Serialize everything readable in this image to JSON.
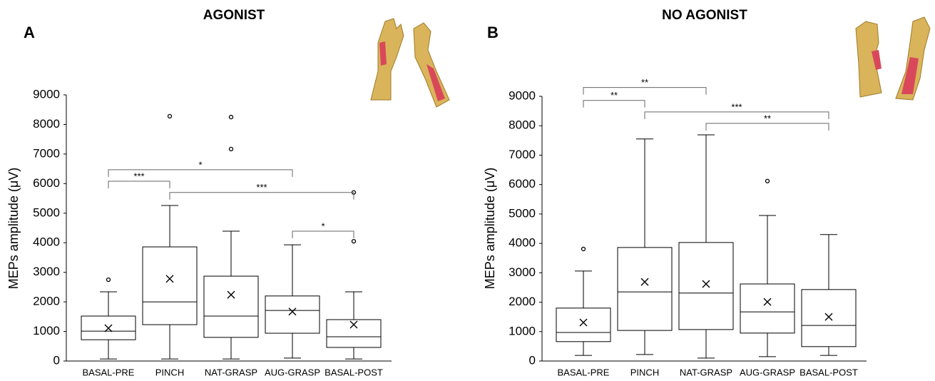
{
  "chart_data": [
    {
      "type": "box",
      "panel": "A",
      "title": "AGONIST",
      "ylabel": "MEPs amplitude (μV)",
      "ylim": [
        0,
        9000
      ],
      "yticks": [
        0,
        1000,
        2000,
        3000,
        4000,
        5000,
        6000,
        7000,
        8000,
        9000
      ],
      "color": "#000000",
      "categories": [
        "BASAL-PRE",
        "PINCH",
        "NAT-GRASP",
        "AUG-GRASP",
        "BASAL-POST"
      ],
      "boxes": [
        {
          "min": 70,
          "q1": 720,
          "median": 1010,
          "q3": 1520,
          "max": 2340,
          "mean": 1110,
          "outliers": [
            2750
          ]
        },
        {
          "min": 70,
          "q1": 1230,
          "median": 2000,
          "q3": 3860,
          "max": 5260,
          "mean": 2780,
          "outliers": [
            8280
          ]
        },
        {
          "min": 70,
          "q1": 800,
          "median": 1520,
          "q3": 2870,
          "max": 4390,
          "mean": 2240,
          "outliers": [
            8250,
            7170
          ]
        },
        {
          "min": 100,
          "q1": 940,
          "median": 1710,
          "q3": 2200,
          "max": 3930,
          "mean": 1670,
          "outliers": []
        },
        {
          "min": 70,
          "q1": 460,
          "median": 820,
          "q3": 1400,
          "max": 2340,
          "mean": 1230,
          "outliers": [
            5700,
            4050
          ]
        }
      ],
      "brackets": [
        {
          "from": "BASAL-PRE",
          "to": "PINCH",
          "y": 6080,
          "label": "***"
        },
        {
          "from": "BASAL-PRE",
          "to": "AUG-GRASP",
          "y": 6470,
          "label": "*"
        },
        {
          "from": "PINCH",
          "to": "BASAL-POST",
          "y": 5700,
          "label": "***"
        },
        {
          "from": "AUG-GRASP",
          "to": "BASAL-POST",
          "y": 4390,
          "label": "*"
        }
      ]
    },
    {
      "type": "box",
      "panel": "B",
      "title": "NO AGONIST",
      "ylabel": "MEPs amplitude (μV)",
      "ylim": [
        0,
        9000
      ],
      "yticks": [
        0,
        1000,
        2000,
        3000,
        4000,
        5000,
        6000,
        7000,
        8000,
        9000
      ],
      "color": "#000000",
      "categories": [
        "BASAL-PRE",
        "PINCH",
        "NAT-GRASP",
        "AUG-GRASP",
        "BASAL-POST"
      ],
      "boxes": [
        {
          "min": 190,
          "q1": 660,
          "median": 970,
          "q3": 1800,
          "max": 3060,
          "mean": 1310,
          "outliers": [
            3810
          ]
        },
        {
          "min": 220,
          "q1": 1040,
          "median": 2350,
          "q3": 3860,
          "max": 7550,
          "mean": 2690,
          "outliers": []
        },
        {
          "min": 100,
          "q1": 1070,
          "median": 2310,
          "q3": 4030,
          "max": 7690,
          "mean": 2620,
          "outliers": []
        },
        {
          "min": 150,
          "q1": 950,
          "median": 1670,
          "q3": 2620,
          "max": 4950,
          "mean": 2010,
          "outliers": [
            6120
          ]
        },
        {
          "min": 190,
          "q1": 490,
          "median": 1210,
          "q3": 2430,
          "max": 4300,
          "mean": 1500,
          "outliers": []
        }
      ],
      "brackets": [
        {
          "from": "BASAL-PRE",
          "to": "NAT-GRASP",
          "y": 9300,
          "label": "**"
        },
        {
          "from": "BASAL-PRE",
          "to": "PINCH",
          "y": 8860,
          "label": "**"
        },
        {
          "from": "PINCH",
          "to": "BASAL-POST",
          "y": 8470,
          "label": "***"
        },
        {
          "from": "NAT-GRASP",
          "to": "BASAL-POST",
          "y": 8080,
          "label": "**"
        }
      ]
    }
  ]
}
